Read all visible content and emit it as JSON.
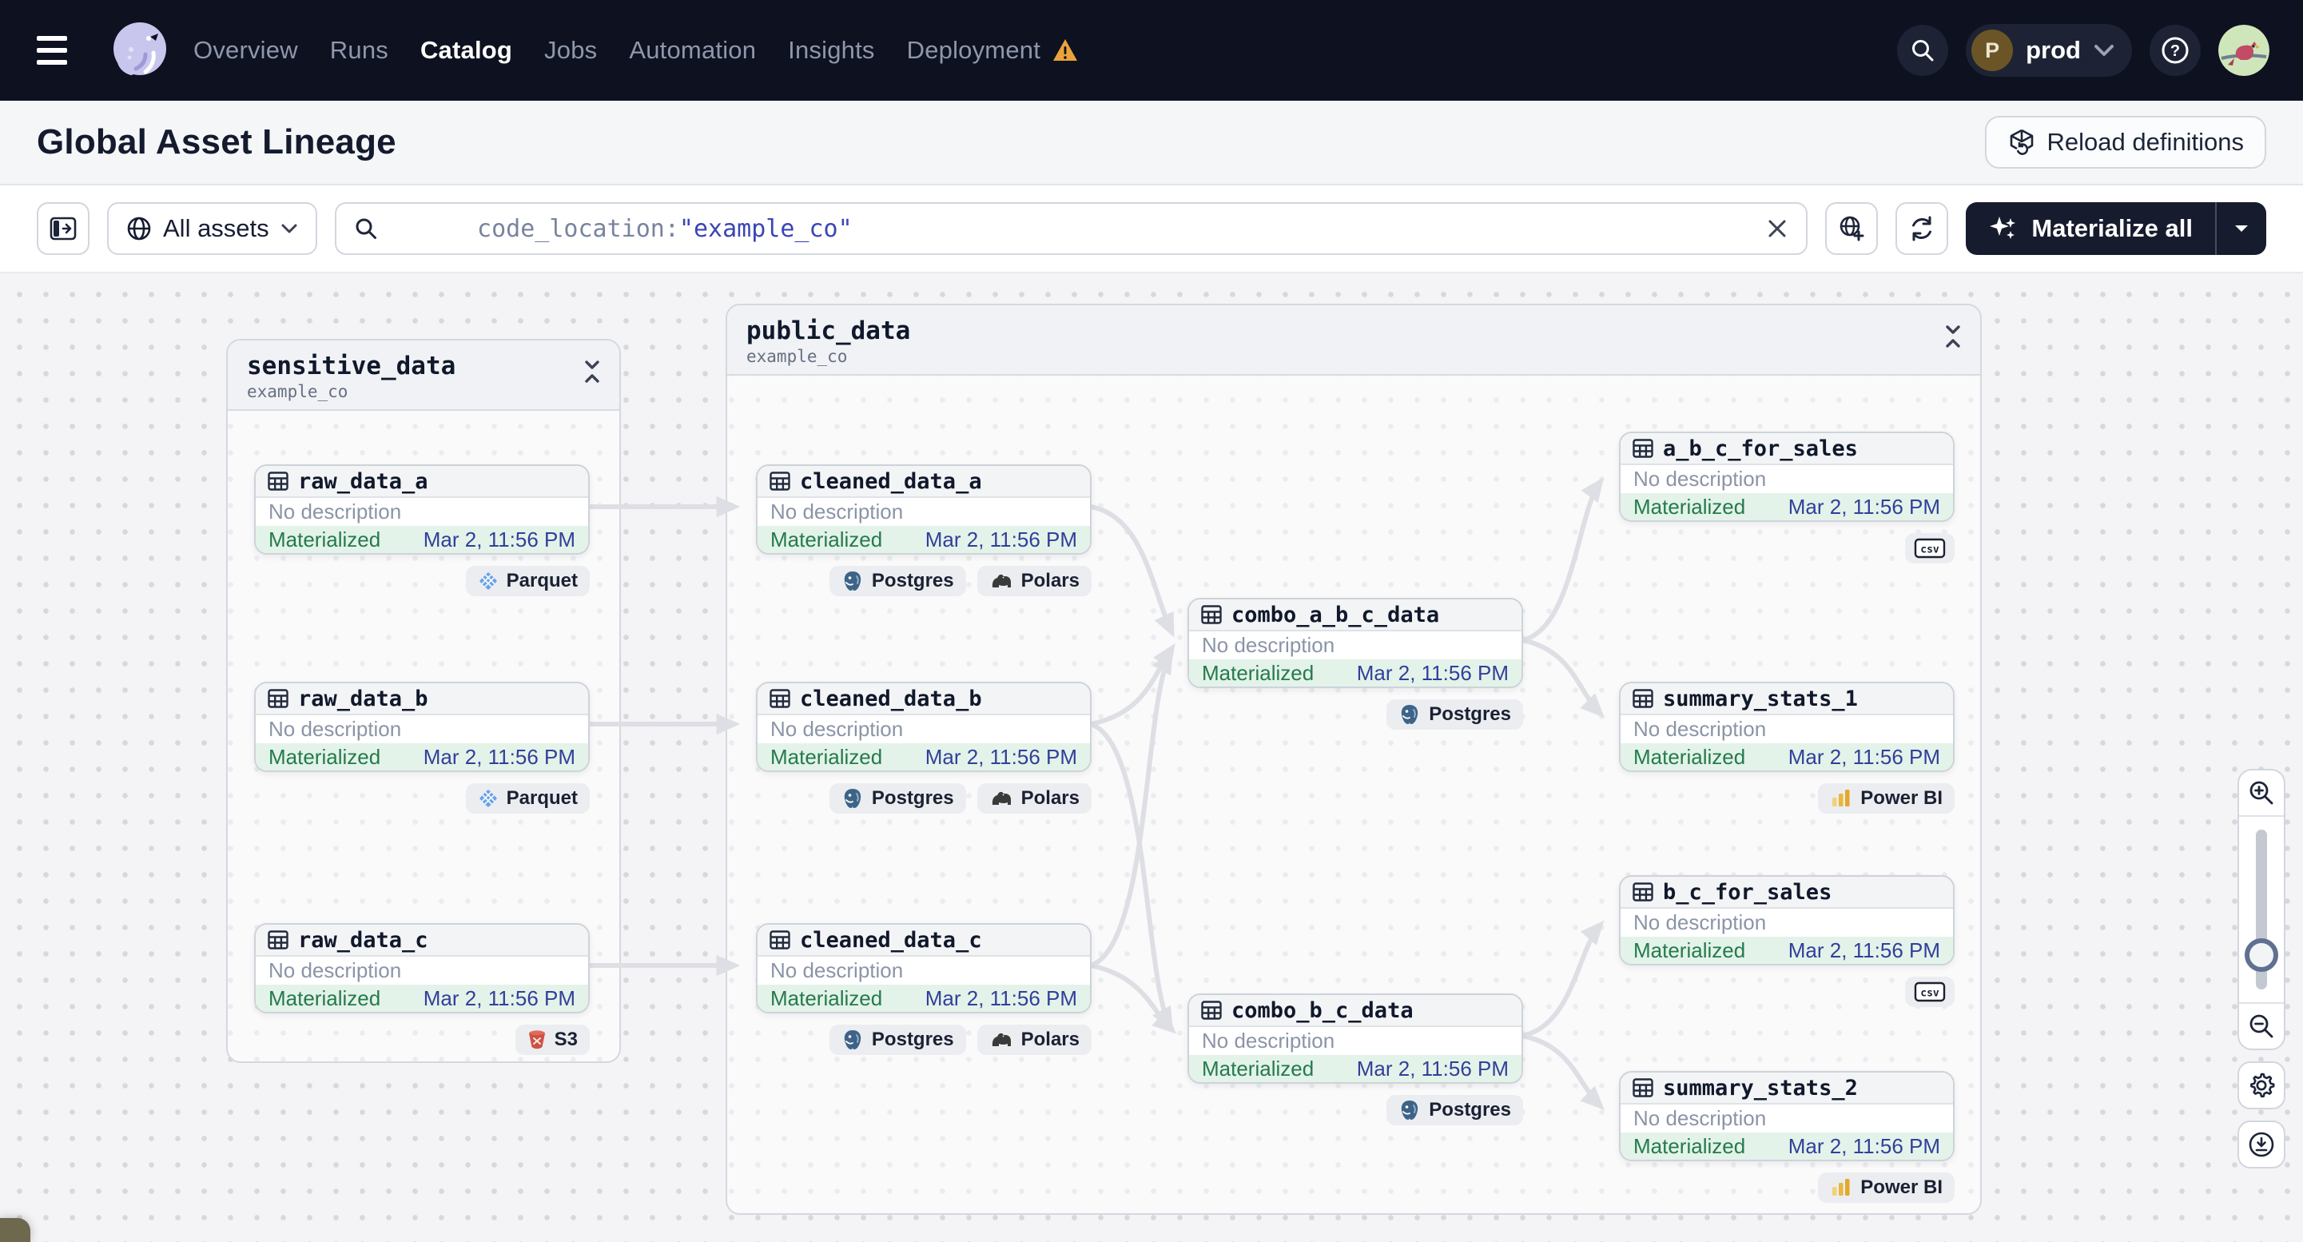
{
  "topnav": {
    "items": [
      {
        "label": "Overview"
      },
      {
        "label": "Runs"
      },
      {
        "label": "Catalog"
      },
      {
        "label": "Jobs"
      },
      {
        "label": "Automation"
      },
      {
        "label": "Insights"
      },
      {
        "label": "Deployment"
      }
    ],
    "active_item": "Catalog",
    "environment": {
      "initial": "P",
      "name": "prod"
    }
  },
  "header": {
    "title": "Global Asset Lineage",
    "reload_button_label": "Reload definitions"
  },
  "toolbar": {
    "scope_label": "All assets",
    "search_prefix": "code_location:",
    "search_value": "\"example_co\"",
    "materialize_label": "Materialize all"
  },
  "graph": {
    "groups": [
      {
        "name": "sensitive_data",
        "location": "example_co"
      },
      {
        "name": "public_data",
        "location": "example_co"
      }
    ],
    "nodes": [
      {
        "id": "raw_data_a",
        "name": "raw_data_a",
        "description": "No description",
        "status": "Materialized",
        "timestamp": "Mar 2, 11:56 PM",
        "tags": [
          {
            "icon": "parquet",
            "label": "Parquet"
          }
        ]
      },
      {
        "id": "raw_data_b",
        "name": "raw_data_b",
        "description": "No description",
        "status": "Materialized",
        "timestamp": "Mar 2, 11:56 PM",
        "tags": [
          {
            "icon": "parquet",
            "label": "Parquet"
          }
        ]
      },
      {
        "id": "raw_data_c",
        "name": "raw_data_c",
        "description": "No description",
        "status": "Materialized",
        "timestamp": "Mar 2, 11:56 PM",
        "tags": [
          {
            "icon": "s3",
            "label": "S3"
          }
        ]
      },
      {
        "id": "cleaned_data_a",
        "name": "cleaned_data_a",
        "description": "No description",
        "status": "Materialized",
        "timestamp": "Mar 2, 11:56 PM",
        "tags": [
          {
            "icon": "postgres",
            "label": "Postgres"
          },
          {
            "icon": "polars",
            "label": "Polars"
          }
        ]
      },
      {
        "id": "cleaned_data_b",
        "name": "cleaned_data_b",
        "description": "No description",
        "status": "Materialized",
        "timestamp": "Mar 2, 11:56 PM",
        "tags": [
          {
            "icon": "postgres",
            "label": "Postgres"
          },
          {
            "icon": "polars",
            "label": "Polars"
          }
        ]
      },
      {
        "id": "cleaned_data_c",
        "name": "cleaned_data_c",
        "description": "No description",
        "status": "Materialized",
        "timestamp": "Mar 2, 11:56 PM",
        "tags": [
          {
            "icon": "postgres",
            "label": "Postgres"
          },
          {
            "icon": "polars",
            "label": "Polars"
          }
        ]
      },
      {
        "id": "combo_a_b_c_data",
        "name": "combo_a_b_c_data",
        "description": "No description",
        "status": "Materialized",
        "timestamp": "Mar 2, 11:56 PM",
        "tags": [
          {
            "icon": "postgres",
            "label": "Postgres"
          }
        ]
      },
      {
        "id": "combo_b_c_data",
        "name": "combo_b_c_data",
        "description": "No description",
        "status": "Materialized",
        "timestamp": "Mar 2, 11:56 PM",
        "tags": [
          {
            "icon": "postgres",
            "label": "Postgres"
          }
        ]
      },
      {
        "id": "a_b_c_for_sales",
        "name": "a_b_c_for_sales",
        "description": "No description",
        "status": "Materialized",
        "timestamp": "Mar 2, 11:56 PM",
        "tags": [
          {
            "icon": "csv",
            "label": ""
          }
        ]
      },
      {
        "id": "summary_stats_1",
        "name": "summary_stats_1",
        "description": "No description",
        "status": "Materialized",
        "timestamp": "Mar 2, 11:56 PM",
        "tags": [
          {
            "icon": "powerbi",
            "label": "Power BI"
          }
        ]
      },
      {
        "id": "b_c_for_sales",
        "name": "b_c_for_sales",
        "description": "No description",
        "status": "Materialized",
        "timestamp": "Mar 2, 11:56 PM",
        "tags": [
          {
            "icon": "csv",
            "label": ""
          }
        ]
      },
      {
        "id": "summary_stats_2",
        "name": "summary_stats_2",
        "description": "No description",
        "status": "Materialized",
        "timestamp": "Mar 2, 11:56 PM",
        "tags": [
          {
            "icon": "powerbi",
            "label": "Power BI"
          }
        ]
      }
    ]
  },
  "colors": {
    "status_green": "#257a4c",
    "status_green_bg": "#e3f3e9",
    "timestamp_blue": "#333f9a",
    "warning_orange": "#e9a33b",
    "materialize_bg": "#161b2e",
    "search_value_indigo": "#3a45b5"
  }
}
